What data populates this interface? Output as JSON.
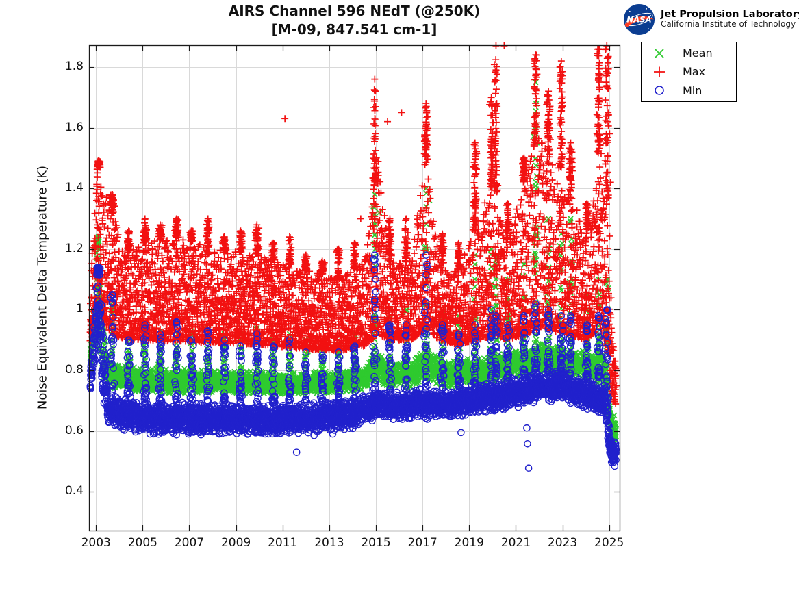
{
  "ui": {
    "title_line1": "AIRS Channel 596 NEdT (@250K)",
    "title_line2": "[M-09, 847.541 cm-1]",
    "logo": {
      "org": "NASA",
      "name": "Jet Propulsion Laboratory",
      "sub": "California Institute of Technology"
    }
  },
  "chart_data": {
    "type": "scatter",
    "title": "AIRS Channel 596 NEdT (@250K)",
    "subtitle": "[M-09, 847.541 cm-1]",
    "xlabel": "",
    "ylabel": "Noise Equivalent Delta Temperature (K)",
    "xlim": [
      2002.7,
      2025.45
    ],
    "ylim": [
      0.272,
      1.872
    ],
    "xticks": [
      2003,
      2005,
      2007,
      2009,
      2011,
      2013,
      2015,
      2017,
      2019,
      2021,
      2023,
      2025
    ],
    "yticks": [
      0.4,
      0.6,
      0.8,
      1.0,
      1.2,
      1.4,
      1.6,
      1.8
    ],
    "ytick_labels": [
      "0.4",
      "0.6",
      "0.8",
      "1",
      "1.2",
      "1.4",
      "1.6",
      "1.8"
    ],
    "grid": true,
    "legend_position": "top-right-outside",
    "background": "#ffffff",
    "axis_color": "#1a1a1a",
    "grid_color": "#d9d9d9",
    "x_start": 2002.75,
    "x_end": 2025.3,
    "points_per_year": 110,
    "series": [
      {
        "name": "Mean",
        "marker": "x",
        "color": "#2fca2f",
        "band": [
          [
            2002.72,
            0.78,
            0.87
          ],
          [
            2002.95,
            0.85,
            1.05
          ],
          [
            2003.1,
            0.86,
            1.22
          ],
          [
            2003.3,
            0.77,
            1.0
          ],
          [
            2003.5,
            0.74,
            0.85
          ],
          [
            2004,
            0.73,
            0.82
          ],
          [
            2006,
            0.72,
            0.81
          ],
          [
            2009,
            0.72,
            0.8
          ],
          [
            2012,
            0.715,
            0.795
          ],
          [
            2014.5,
            0.73,
            0.81
          ],
          [
            2015.05,
            0.76,
            0.88
          ],
          [
            2015.5,
            0.74,
            0.83
          ],
          [
            2016.5,
            0.74,
            0.83
          ],
          [
            2017.2,
            0.76,
            0.88
          ],
          [
            2018,
            0.74,
            0.83
          ],
          [
            2019,
            0.745,
            0.84
          ],
          [
            2020,
            0.76,
            0.855
          ],
          [
            2021,
            0.77,
            0.87
          ],
          [
            2022,
            0.785,
            0.89
          ],
          [
            2023,
            0.78,
            0.885
          ],
          [
            2024,
            0.765,
            0.865
          ],
          [
            2024.8,
            0.745,
            0.85
          ],
          [
            2025.0,
            0.6,
            0.75
          ],
          [
            2025.12,
            0.555,
            0.66
          ],
          [
            2025.3,
            0.56,
            0.65
          ]
        ],
        "outliers": [
          [
            2015.15,
            1.32
          ],
          [
            2017.3,
            1.36
          ],
          [
            2021.85,
            1.75
          ],
          [
            2021.9,
            1.55
          ],
          [
            2019.25,
            1.18
          ]
        ]
      },
      {
        "name": "Max",
        "marker": "+",
        "color": "#f21111",
        "band": [
          [
            2002.72,
            0.88,
            1.06
          ],
          [
            2002.95,
            0.98,
            1.32
          ],
          [
            2003.1,
            1.02,
            1.49
          ],
          [
            2003.35,
            0.95,
            1.42
          ],
          [
            2003.7,
            0.92,
            1.33
          ],
          [
            2004.2,
            0.9,
            1.18
          ],
          [
            2005,
            0.9,
            1.22
          ],
          [
            2006.5,
            0.895,
            1.24
          ],
          [
            2008,
            0.89,
            1.2
          ],
          [
            2010,
            0.885,
            1.18
          ],
          [
            2012,
            0.87,
            1.13
          ],
          [
            2013.5,
            0.865,
            1.1
          ],
          [
            2014.5,
            0.88,
            1.16
          ],
          [
            2015.1,
            0.92,
            1.5
          ],
          [
            2015.6,
            0.9,
            1.16
          ],
          [
            2016.5,
            0.9,
            1.16
          ],
          [
            2017.2,
            0.94,
            1.55
          ],
          [
            2017.7,
            0.9,
            1.16
          ],
          [
            2018.5,
            0.885,
            1.12
          ],
          [
            2019.3,
            0.9,
            1.32
          ],
          [
            2020.1,
            0.915,
            1.42
          ],
          [
            2020.6,
            0.9,
            1.22
          ],
          [
            2021.5,
            0.92,
            1.46
          ],
          [
            2022,
            0.94,
            1.6
          ],
          [
            2022.6,
            0.93,
            1.48
          ],
          [
            2023.2,
            0.92,
            1.46
          ],
          [
            2024,
            0.9,
            1.22
          ],
          [
            2024.6,
            0.94,
            1.55
          ],
          [
            2025.0,
            0.84,
            1.35
          ],
          [
            2025.12,
            0.71,
            0.92
          ],
          [
            2025.3,
            0.68,
            0.8
          ]
        ],
        "outliers": [
          [
            2011.1,
            1.63
          ],
          [
            2014.35,
            1.3
          ],
          [
            2015.5,
            1.62
          ],
          [
            2016.1,
            1.65
          ],
          [
            2020.5,
            1.87
          ],
          [
            2025.02,
            1.58
          ],
          [
            2025.06,
            1.42
          ]
        ]
      },
      {
        "name": "Min",
        "marker": "o",
        "color": "#2121cc",
        "band": [
          [
            2002.72,
            0.685,
            0.76
          ],
          [
            2002.95,
            0.82,
            1.04
          ],
          [
            2003.1,
            0.86,
            1.14
          ],
          [
            2003.3,
            0.68,
            0.96
          ],
          [
            2003.5,
            0.625,
            0.74
          ],
          [
            2004,
            0.6,
            0.715
          ],
          [
            2005.5,
            0.585,
            0.7
          ],
          [
            2008,
            0.583,
            0.695
          ],
          [
            2010.5,
            0.585,
            0.69
          ],
          [
            2012.5,
            0.59,
            0.695
          ],
          [
            2014,
            0.6,
            0.705
          ],
          [
            2015,
            0.635,
            0.74
          ],
          [
            2016,
            0.63,
            0.73
          ],
          [
            2017.1,
            0.635,
            0.745
          ],
          [
            2018,
            0.638,
            0.735
          ],
          [
            2019,
            0.65,
            0.75
          ],
          [
            2020,
            0.66,
            0.765
          ],
          [
            2021,
            0.67,
            0.78
          ],
          [
            2022,
            0.69,
            0.795
          ],
          [
            2023,
            0.7,
            0.8
          ],
          [
            2024,
            0.665,
            0.77
          ],
          [
            2024.85,
            0.645,
            0.755
          ],
          [
            2025.0,
            0.52,
            0.63
          ],
          [
            2025.12,
            0.472,
            0.575
          ],
          [
            2025.3,
            0.48,
            0.565
          ]
        ],
        "outliers": [
          [
            2011.6,
            0.53
          ],
          [
            2012.35,
            0.585
          ],
          [
            2013.15,
            0.59
          ],
          [
            2018.65,
            0.595
          ],
          [
            2021.47,
            0.61
          ],
          [
            2021.5,
            0.558
          ],
          [
            2021.55,
            0.478
          ]
        ]
      }
    ],
    "events": [
      [
        2003.1,
        1.14,
        1.24,
        1.49
      ],
      [
        2003.7,
        1.05,
        1.05,
        1.38
      ],
      [
        2004.4,
        0.9,
        0.92,
        1.26
      ],
      [
        2005.1,
        0.95,
        0.95,
        1.3
      ],
      [
        2005.75,
        0.92,
        0.93,
        1.28
      ],
      [
        2006.45,
        0.96,
        0.96,
        1.3
      ],
      [
        2007.1,
        0.9,
        0.93,
        1.26
      ],
      [
        2007.8,
        0.93,
        0.94,
        1.3
      ],
      [
        2008.5,
        0.9,
        0.92,
        1.24
      ],
      [
        2009.2,
        0.88,
        0.92,
        1.26
      ],
      [
        2009.9,
        0.92,
        0.94,
        1.28
      ],
      [
        2010.6,
        0.88,
        0.9,
        1.22
      ],
      [
        2011.3,
        0.9,
        0.92,
        1.24
      ],
      [
        2012.0,
        0.86,
        0.9,
        1.18
      ],
      [
        2012.7,
        0.85,
        0.88,
        1.16
      ],
      [
        2013.4,
        0.86,
        0.9,
        1.2
      ],
      [
        2014.1,
        0.88,
        0.92,
        1.22
      ],
      [
        2014.95,
        1.18,
        1.38,
        1.76
      ],
      [
        2015.6,
        0.95,
        1.0,
        1.3
      ],
      [
        2016.3,
        0.95,
        1.0,
        1.3
      ],
      [
        2017.15,
        1.18,
        1.4,
        1.68
      ],
      [
        2017.85,
        0.95,
        1.0,
        1.25
      ],
      [
        2018.55,
        0.92,
        0.98,
        1.22
      ],
      [
        2019.25,
        0.95,
        1.15,
        1.55
      ],
      [
        2019.95,
        1.0,
        1.2,
        1.7
      ],
      [
        2020.15,
        0.98,
        1.18,
        1.87
      ],
      [
        2020.65,
        0.95,
        1.1,
        1.35
      ],
      [
        2021.35,
        0.98,
        1.15,
        1.5
      ],
      [
        2021.85,
        1.02,
        1.75,
        1.84
      ],
      [
        2022.4,
        1.0,
        1.3,
        1.72
      ],
      [
        2022.95,
        0.98,
        1.25,
        1.82
      ],
      [
        2023.35,
        0.98,
        1.3,
        1.55
      ],
      [
        2024.05,
        0.95,
        1.05,
        1.35
      ],
      [
        2024.55,
        0.98,
        1.1,
        1.86
      ],
      [
        2024.9,
        1.0,
        1.1,
        1.87
      ]
    ]
  }
}
